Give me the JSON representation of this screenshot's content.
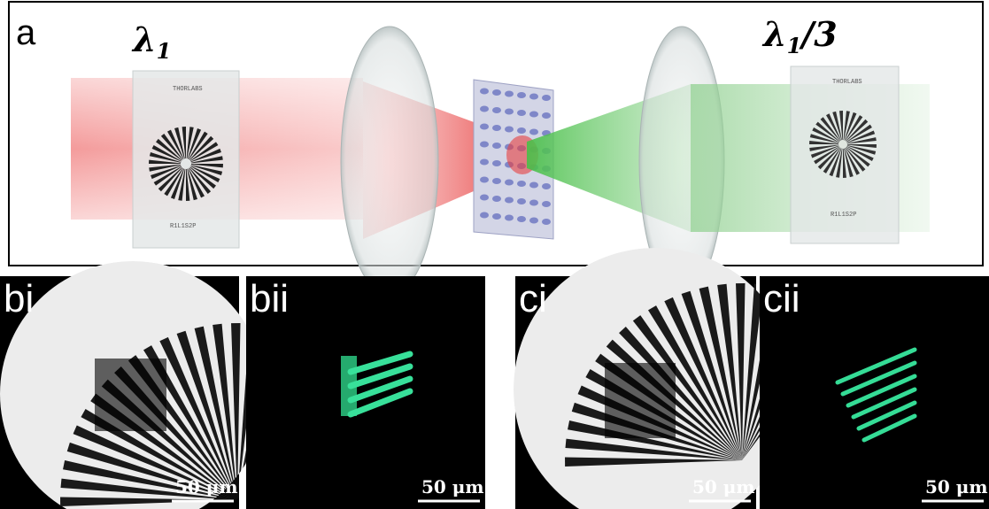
{
  "panel_a": {
    "label": "a",
    "input_wavelength": {
      "symbol": "λ",
      "subscript": "1"
    },
    "output_wavelength": {
      "symbol": "λ",
      "subscript": "1",
      "suffix": "/3"
    },
    "target_brand": "THORLABS",
    "target_part": "R1L1S2P"
  },
  "panels": [
    {
      "label": "bi",
      "scale_bar": "50 μm"
    },
    {
      "label": "bii",
      "scale_bar": "50 μm"
    },
    {
      "label": "ci",
      "scale_bar": "50 μm"
    },
    {
      "label": "cii",
      "scale_bar": "50 μm"
    }
  ]
}
